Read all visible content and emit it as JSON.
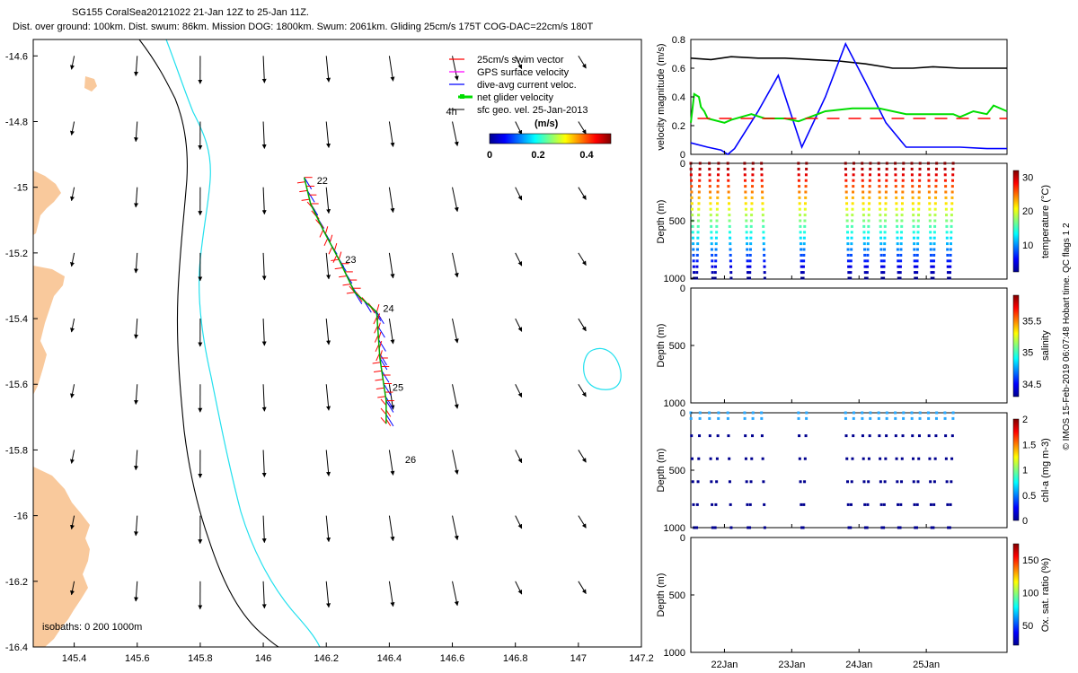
{
  "header": {
    "line1": "SG155 CoralSea20121022 21-Jan 12Z to 25-Jan 11Z.",
    "line2": "Dist. over ground: 100km. Dist. swum: 86km. Mission DOG: 1800km. Swum: 2061km. Gliding 25cm/s 175T COG-DAC=22cm/s 180T"
  },
  "colors": {
    "land": "#f9c99c",
    "isobath_200": "#000000",
    "isobath_1000": "#22e0ee",
    "swim": "#ff0000",
    "gps": "#ff00ff",
    "dac": "#0000ff",
    "net": "#00dd00",
    "geo": "#000000"
  },
  "chart_data": [
    {
      "type": "scatter",
      "panel": "map",
      "xlim": [
        145.27,
        147.2
      ],
      "ylim": [
        -16.4,
        -14.55
      ],
      "x_ticks": [
        145.4,
        145.6,
        145.8,
        146,
        146.2,
        146.4,
        146.6,
        146.8,
        147,
        147.2
      ],
      "y_ticks": [
        -14.6,
        -14.8,
        -15,
        -15.2,
        -15.4,
        -15.6,
        -15.8,
        -16,
        -16.2,
        -16.4
      ],
      "legend": {
        "placement": "top-right",
        "entries": [
          "25cm/s swim vector",
          "GPS surface velocity",
          "dive-avg current veloc.",
          "net glider velocity",
          "sfc geo. vel. 25-Jan-2013"
        ]
      },
      "colorbar": {
        "title": "(m/s)",
        "ticks": [
          0,
          0.2,
          0.4
        ],
        "range": [
          0,
          0.5
        ]
      },
      "isobath_label": "isobaths: 0   200  1000m",
      "track_labels": [
        {
          "text": "22",
          "lon": 146.17,
          "lat": -14.99
        },
        {
          "text": "23",
          "lon": 146.26,
          "lat": -15.23
        },
        {
          "text": "24",
          "lon": 146.38,
          "lat": -15.38
        },
        {
          "text": "25",
          "lon": 146.41,
          "lat": -15.62
        },
        {
          "text": "26",
          "lon": 146.45,
          "lat": -15.84
        }
      ],
      "geo_label": "4h",
      "geo_label_pos": {
        "lon": 146.58,
        "lat": -14.78
      },
      "track": [
        [
          146.13,
          -14.97
        ],
        [
          146.15,
          -15.05
        ],
        [
          146.19,
          -15.13
        ],
        [
          146.24,
          -15.22
        ],
        [
          146.29,
          -15.32
        ],
        [
          146.36,
          -15.38
        ],
        [
          146.37,
          -15.52
        ],
        [
          146.39,
          -15.65
        ],
        [
          146.39,
          -15.72
        ]
      ],
      "geo_vectors_note": "surface geostrophic velocity arrows, shown as (u, v) in m/s on a 0.2 deg grid"
    },
    {
      "type": "line",
      "panel": "velocity",
      "ylabel": "velocity magnitude (m/s)",
      "xlim": [
        0,
        4.7
      ],
      "ylim": [
        0,
        0.8
      ],
      "y_ticks": [
        0,
        0.2,
        0.4,
        0.6,
        0.8
      ],
      "series": [
        {
          "color": "#000000",
          "x": [
            0,
            0.3,
            0.6,
            1.0,
            1.4,
            1.8,
            2.2,
            2.6,
            3.0,
            3.3,
            3.6,
            4.0,
            4.4,
            4.7
          ],
          "y": [
            0.67,
            0.66,
            0.68,
            0.67,
            0.67,
            0.66,
            0.65,
            0.63,
            0.6,
            0.6,
            0.61,
            0.6,
            0.6,
            0.6
          ]
        },
        {
          "color": "#0000ff",
          "x": [
            0,
            0.25,
            0.35,
            0.45,
            0.55,
            0.65,
            1.0,
            1.3,
            1.65,
            2.0,
            2.3,
            2.6,
            2.9,
            3.2,
            3.5,
            4.0,
            4.4,
            4.7
          ],
          "y": [
            0.08,
            0.05,
            0.04,
            0.03,
            0.0,
            0.04,
            0.3,
            0.55,
            0.05,
            0.4,
            0.77,
            0.5,
            0.22,
            0.05,
            0.05,
            0.05,
            0.04,
            0.04
          ]
        },
        {
          "color": "#00dd00",
          "x": [
            0,
            0.05,
            0.12,
            0.15,
            0.2,
            0.25,
            0.5,
            0.6,
            0.9,
            1.1,
            1.4,
            1.6,
            2.0,
            2.4,
            2.6,
            2.8,
            3.2,
            3.6,
            3.9,
            4.0,
            4.2,
            4.4,
            4.5,
            4.7
          ],
          "y": [
            0.22,
            0.42,
            0.4,
            0.33,
            0.3,
            0.25,
            0.22,
            0.24,
            0.28,
            0.25,
            0.25,
            0.23,
            0.3,
            0.32,
            0.32,
            0.32,
            0.28,
            0.28,
            0.28,
            0.26,
            0.3,
            0.28,
            0.34,
            0.3
          ]
        },
        {
          "color": "#ff0000",
          "dashed": true,
          "x": [
            0.1,
            1.0,
            1.2,
            2.0,
            2.3,
            2.6,
            3.0,
            4.7
          ],
          "y": [
            0.25,
            0.25,
            0.25,
            0.25,
            0.25,
            0.25,
            0.25,
            0.25
          ]
        }
      ]
    },
    {
      "type": "scatter",
      "panel": "temperature",
      "ylabel": "Depth (m)",
      "colorbar_label": "temperature (°C)",
      "colorbar_ticks": [
        10,
        20,
        30
      ],
      "colorbar_range": [
        2,
        32
      ],
      "ylim": [
        1000,
        0
      ],
      "y_ticks": [
        0,
        500,
        1000
      ]
    },
    {
      "type": "scatter",
      "panel": "salinity",
      "ylabel": "Depth (m)",
      "colorbar_label": "salinity",
      "colorbar_ticks": [
        34.5,
        35,
        35.5
      ],
      "colorbar_range": [
        34.3,
        35.9
      ],
      "ylim": [
        1000,
        0
      ],
      "y_ticks": [
        0,
        500,
        1000
      ]
    },
    {
      "type": "scatter",
      "panel": "chla",
      "ylabel": "Depth (m)",
      "colorbar_label": "chl-a (mg m-3)",
      "colorbar_ticks": [
        0,
        0.5,
        1,
        1.5,
        2
      ],
      "colorbar_range": [
        0,
        2
      ],
      "ylim": [
        1000,
        0
      ],
      "y_ticks": [
        0,
        500,
        1000
      ]
    },
    {
      "type": "scatter",
      "panel": "oxygen",
      "ylabel": "Depth (m)",
      "colorbar_label": "Ox. sat. ratio (%)",
      "colorbar_ticks": [
        50,
        100,
        150
      ],
      "colorbar_range": [
        20,
        175
      ],
      "ylim": [
        1000,
        0
      ],
      "y_ticks": [
        0,
        500,
        1000
      ],
      "x_tick_labels": [
        "22Jan",
        "23Jan",
        "24Jan",
        "25Jan"
      ]
    }
  ],
  "profiles": {
    "day_start": 0,
    "day_ticks": [
      0.5,
      1.5,
      2.5,
      3.5
    ],
    "groups": [
      {
        "start": 0.0,
        "end": 0.55,
        "count": 5
      },
      {
        "start": 0.8,
        "end": 1.05,
        "count": 3
      },
      {
        "start": 1.6,
        "end": 1.72,
        "count": 2
      },
      {
        "start": 2.3,
        "end": 3.9,
        "count": 14
      }
    ]
  },
  "footer": "© IMOS 15-Feb-2019 06:07:48 Hobart time. QC flags 1  2"
}
